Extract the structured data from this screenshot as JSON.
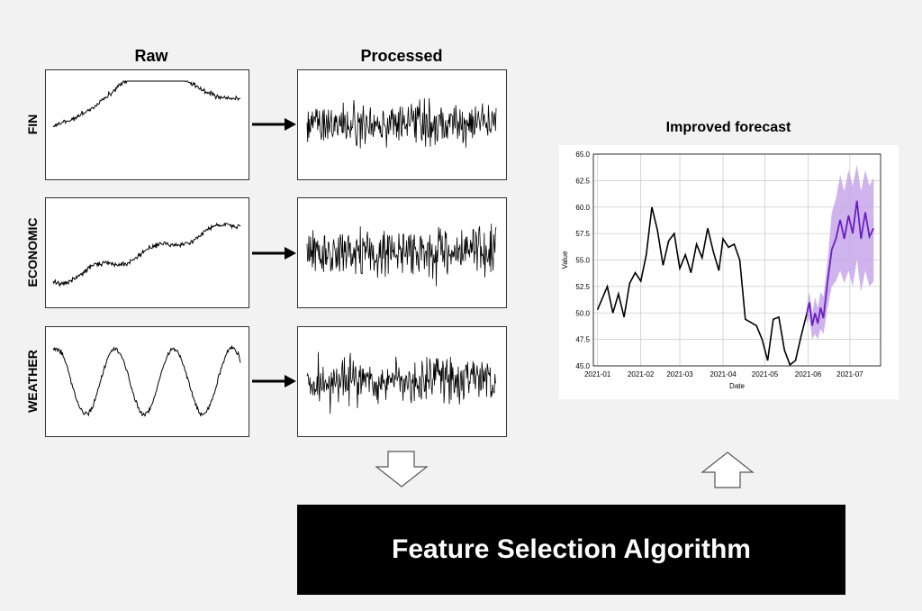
{
  "headers": {
    "raw": "Raw",
    "processed": "Processed"
  },
  "rows": [
    {
      "label": "FIN"
    },
    {
      "label": "ECONOMIC"
    },
    {
      "label": "WEATHER"
    }
  ],
  "algorithm_label": "Feature Selection Algorithm",
  "forecast_title": "Improved forecast",
  "colors": {
    "history": "#000000",
    "forecast": "#6a1fc2",
    "band": "#c7a6ea"
  },
  "chart_data": {
    "type": "line",
    "title": "",
    "xlabel": "Date",
    "ylabel": "Value",
    "x_ticks": [
      "2021-01",
      "2021-02",
      "2021-03",
      "2021-04",
      "2021-05",
      "2021-06",
      "2021-07"
    ],
    "y_ticks": [
      "45.0",
      "47.5",
      "50.0",
      "52.5",
      "55.0",
      "57.5",
      "60.0",
      "62.5",
      "65.0"
    ],
    "ylim": [
      45.0,
      65.0
    ],
    "xlim": [
      "2020-12-29",
      "2021-07-23"
    ],
    "grid": true,
    "series": [
      {
        "role": "history",
        "x": [
          "2021-01-01",
          "2021-01-08",
          "2021-01-12",
          "2021-01-16",
          "2021-01-20",
          "2021-01-24",
          "2021-01-28",
          "2021-02-01",
          "2021-02-05",
          "2021-02-09",
          "2021-02-13",
          "2021-02-17",
          "2021-02-21",
          "2021-02-25",
          "2021-03-01",
          "2021-03-05",
          "2021-03-09",
          "2021-03-13",
          "2021-03-17",
          "2021-03-21",
          "2021-03-25",
          "2021-03-29",
          "2021-04-01",
          "2021-04-05",
          "2021-04-09",
          "2021-04-13",
          "2021-04-17",
          "2021-04-21",
          "2021-04-25",
          "2021-04-29",
          "2021-05-03",
          "2021-05-07",
          "2021-05-11",
          "2021-05-15",
          "2021-05-19",
          "2021-05-23",
          "2021-05-27",
          "2021-05-31"
        ],
        "y": [
          50.3,
          52.5,
          50.0,
          51.8,
          49.6,
          52.8,
          53.8,
          53.0,
          55.5,
          60.0,
          57.8,
          54.5,
          56.8,
          57.5,
          54.2,
          55.5,
          53.8,
          56.5,
          55.2,
          58.0,
          55.8,
          54.0,
          57.0,
          56.2,
          56.5,
          55.0,
          49.4,
          49.1,
          48.8,
          47.5,
          45.5,
          49.4,
          49.6,
          46.5,
          45.1,
          45.5,
          47.8,
          49.9
        ]
      },
      {
        "role": "forecast",
        "x": [
          "2021-05-31",
          "2021-06-02",
          "2021-06-04",
          "2021-06-06",
          "2021-06-08",
          "2021-06-10",
          "2021-06-12",
          "2021-06-15",
          "2021-06-18",
          "2021-06-21",
          "2021-06-24",
          "2021-06-27",
          "2021-06-30",
          "2021-07-03",
          "2021-07-06",
          "2021-07-09",
          "2021-07-12",
          "2021-07-15",
          "2021-07-18"
        ],
        "y": [
          49.9,
          51.0,
          48.8,
          50.0,
          49.0,
          50.5,
          49.5,
          53.0,
          56.0,
          57.0,
          58.8,
          57.0,
          59.2,
          57.5,
          60.6,
          57.0,
          59.5,
          57.2,
          58.0
        ],
        "band_low": [
          49.0,
          49.5,
          47.5,
          48.0,
          47.5,
          48.5,
          48.0,
          50.5,
          52.5,
          53.0,
          54.0,
          52.8,
          54.0,
          52.5,
          55.0,
          52.0,
          54.0,
          52.5,
          53.0
        ],
        "band_high": [
          50.5,
          52.0,
          50.0,
          51.5,
          50.5,
          52.0,
          51.5,
          55.0,
          59.5,
          60.8,
          63.0,
          61.5,
          63.5,
          62.0,
          64.0,
          61.5,
          63.5,
          62.0,
          62.8
        ]
      }
    ]
  }
}
